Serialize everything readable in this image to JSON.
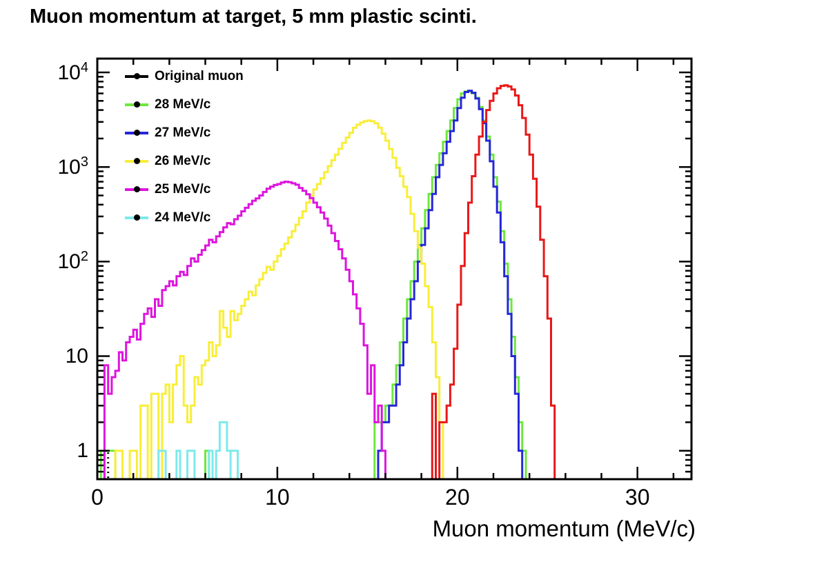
{
  "chart_data": {
    "type": "line",
    "subtype": "step-histogram",
    "title": "Muon momentum at target, 5 mm plastic scinti.",
    "xlabel": "Muon momentum (MeV/c)",
    "ylabel": "",
    "xlim": [
      0,
      33
    ],
    "ylim": [
      0.5,
      14000
    ],
    "yscale": "log",
    "grid": false,
    "bin_width": 0.2,
    "x_major_ticks": [
      0,
      10,
      20,
      30
    ],
    "x_minor_step": 2,
    "y_major_ticks": [
      1,
      10,
      100,
      1000,
      10000
    ],
    "x_tick_labels": [
      {
        "text": "0",
        "value": 0
      },
      {
        "text": "10",
        "value": 10
      },
      {
        "text": "20",
        "value": 20
      },
      {
        "text": "30",
        "value": 30
      }
    ],
    "y_tick_labels": [
      {
        "base": "1",
        "exp": "",
        "value": 1
      },
      {
        "base": "10",
        "exp": "",
        "value": 10
      },
      {
        "base": "10",
        "exp": "2",
        "value": 100
      },
      {
        "base": "10",
        "exp": "3",
        "value": 1000
      },
      {
        "base": "10",
        "exp": "4",
        "value": 10000
      }
    ],
    "legend_position": "top-left-inside",
    "legend": [
      {
        "label": "Original muon",
        "color": "#000000"
      },
      {
        "label": "28 MeV/c",
        "color": "#6ce83c"
      },
      {
        "label": "27 MeV/c",
        "color": "#2626d8"
      },
      {
        "label": "26 MeV/c",
        "color": "#f8ee38"
      },
      {
        "label": "25 MeV/c",
        "color": "#dd14dd"
      },
      {
        "label": "24 MeV/c",
        "color": "#7de9ec"
      }
    ],
    "series": [
      {
        "name": "original-muon",
        "label": "Original muon",
        "color": "#000000",
        "dash": "2 5",
        "width": 3,
        "baseline_full": false,
        "segments": [
          {
            "x0": 0.4,
            "counts": [
              1
            ]
          }
        ]
      },
      {
        "name": "28-mevc",
        "label": "28 MeV/c",
        "color": "#6ce83c",
        "dash": "",
        "width": 3,
        "baseline_full": false,
        "segments": [
          {
            "x0": 0.2,
            "counts": [
              1,
              1,
              1,
              1
            ]
          },
          {
            "x0": 6.0,
            "counts": [
              1
            ]
          },
          {
            "x0": 15.4,
            "counts": [
              2,
              2,
              2,
              3,
              3,
              5,
              8,
              14,
              25,
              40,
              62,
              100,
              150,
              225,
              350,
              520,
              780,
              1050,
              1400,
              1850,
              2400,
              3100,
              4200,
              5200,
              6000,
              6300,
              6300,
              6000,
              5400,
              4300,
              3100,
              2100,
              1350,
              780,
              430,
              210,
              95,
              40,
              16,
              6,
              2,
              1
            ]
          }
        ]
      },
      {
        "name": "27-mevc",
        "label": "27 MeV/c",
        "color": "#2626d8",
        "dash": "",
        "width": 3,
        "baseline_full": true,
        "segments": [
          {
            "x0": 15.6,
            "counts": [
              1,
              2,
              2,
              3,
              3,
              5,
              8,
              14,
              25,
              40,
              62,
              100,
              150,
              225,
              350,
              520,
              780,
              1050,
              1400,
              1850,
              2400,
              3100,
              4200,
              5400,
              6200,
              6400,
              6100,
              5300,
              4100,
              2900,
              1900,
              1150,
              620,
              330,
              160,
              70,
              28,
              10,
              4,
              1
            ]
          }
        ]
      },
      {
        "name": "26-mevc",
        "label": "26 MeV/c",
        "color": "#f8ee38",
        "dash": "",
        "width": 3,
        "baseline_full": false,
        "segments": [
          {
            "x0": 1.0,
            "counts": [
              1,
              1,
              0,
              0,
              1,
              1,
              0,
              3,
              3,
              0,
              4,
              4,
              0,
              4,
              5,
              2,
              5,
              8,
              10,
              3,
              2,
              3,
              6,
              5,
              8,
              9,
              14,
              10,
              13,
              30,
              20,
              16,
              30,
              24,
              28,
              34,
              40,
              48,
              44,
              56,
              65,
              76,
              88,
              82,
              100,
              115,
              135,
              155,
              180,
              210,
              245,
              290,
              340,
              420,
              500,
              580,
              660,
              760,
              880,
              1020,
              1180,
              1350,
              1560,
              1800,
              2050,
              2300,
              2600,
              2800,
              2950,
              3050,
              3100,
              3050,
              2900,
              2600,
              2250,
              1900,
              1550,
              1250,
              980,
              800,
              620,
              480,
              320,
              210,
              140,
              95,
              55,
              33,
              14,
              6,
              2
            ]
          }
        ]
      },
      {
        "name": "25-mevc",
        "label": "25 MeV/c",
        "color": "#dd14dd",
        "dash": "",
        "width": 3,
        "baseline_full": false,
        "segments": [
          {
            "x0": 0.4,
            "counts": [
              8,
              4,
              6,
              7,
              11,
              9,
              14,
              16,
              19,
              15,
              22,
              28,
              32,
              26,
              40,
              34,
              50,
              55,
              62,
              56,
              70,
              78,
              72,
              90,
              108,
              100,
              118,
              132,
              148,
              170,
              160,
              185,
              205,
              230,
              255,
              248,
              280,
              305,
              340,
              370,
              405,
              440,
              465,
              500,
              545,
              590,
              620,
              645,
              660,
              685,
              700,
              690,
              672,
              650,
              600,
              560,
              515,
              470,
              420,
              375,
              330,
              285,
              240,
              200,
              165,
              135,
              108,
              82,
              62,
              45,
              32,
              22,
              13,
              4,
              8,
              2,
              3,
              1
            ]
          }
        ]
      },
      {
        "name": "unlabeled-red",
        "label": "",
        "color": "#e81717",
        "dash": "",
        "width": 3,
        "baseline_full": false,
        "segments": [
          {
            "x0": 18.6,
            "counts": [
              4,
              0,
              2,
              2,
              3,
              5,
              12,
              35,
              90,
              200,
              420,
              800,
              1350,
              2100,
              3000,
              4000,
              5000,
              6000,
              6800,
              7200,
              7300,
              7100,
              6600,
              5700,
              4500,
              3300,
              2200,
              1350,
              750,
              380,
              170,
              70,
              25,
              3
            ]
          }
        ]
      },
      {
        "name": "24-mevc",
        "label": "24 MeV/c",
        "color": "#7de9ec",
        "dash": "",
        "width": 3,
        "baseline_full": true,
        "segments": [
          {
            "x0": 3.4,
            "counts": [
              1,
              1
            ]
          },
          {
            "x0": 4.4,
            "counts": [
              1
            ]
          },
          {
            "x0": 5.0,
            "counts": [
              1,
              1
            ]
          },
          {
            "x0": 6.2,
            "counts": [
              1
            ]
          },
          {
            "x0": 6.6,
            "counts": [
              1,
              2,
              2,
              1
            ]
          },
          {
            "x0": 7.4,
            "counts": [
              1,
              1
            ]
          }
        ]
      }
    ]
  },
  "layout_note": "single ROOT-style log-y histogram canvas"
}
